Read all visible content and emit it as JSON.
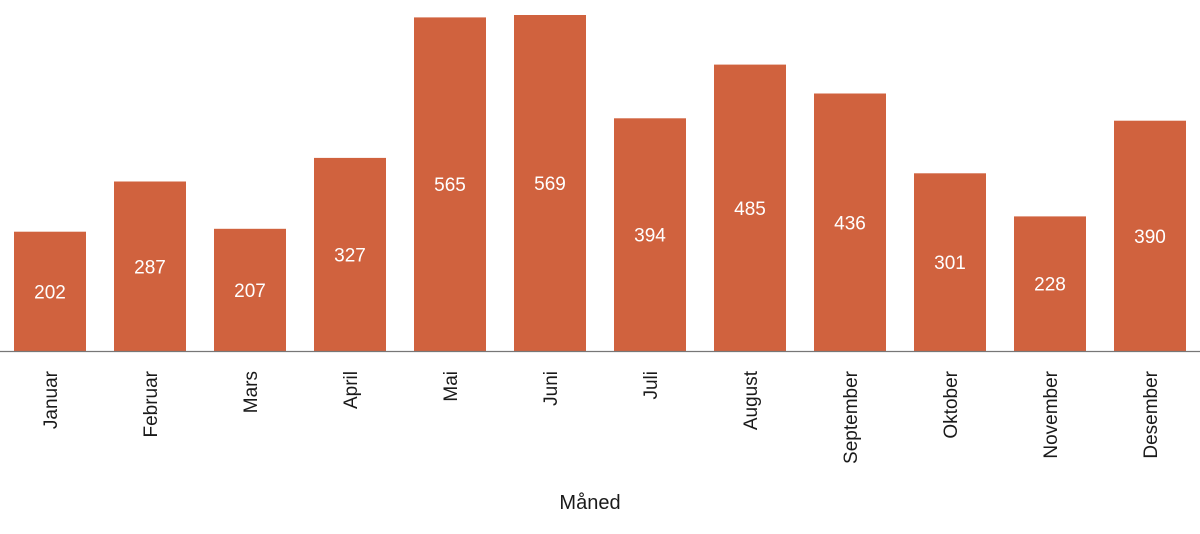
{
  "chart_data": {
    "type": "bar",
    "categories": [
      "Januar",
      "Februar",
      "Mars",
      "April",
      "Mai",
      "Juni",
      "Juli",
      "August",
      "September",
      "Oktober",
      "November",
      "Desember"
    ],
    "values": [
      202,
      287,
      207,
      327,
      565,
      569,
      394,
      485,
      436,
      301,
      228,
      390
    ],
    "title": "",
    "xlabel": "Måned",
    "ylabel": "",
    "ylim": [
      0,
      600
    ],
    "grid": false,
    "legend": "none",
    "bar_color": "#d0623e",
    "label_color": "#ffffff",
    "axis_color": "#777777",
    "text_color": "#1a1a1a"
  }
}
